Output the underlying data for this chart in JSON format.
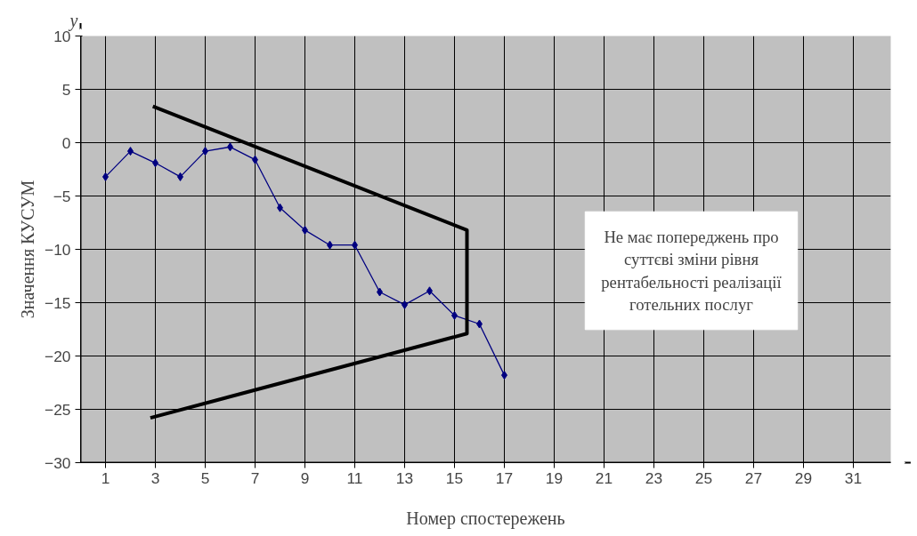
{
  "chart_data": {
    "type": "line",
    "xlabel": "Номер спостережень",
    "ylabel": "Значення КУСУМ",
    "annotations": [
      "y",
      "Не має попереджень про суттєві зміни рівня рентабельності реалізації готельних послуг"
    ],
    "x": [
      1,
      2,
      3,
      4,
      5,
      6,
      7,
      8,
      9,
      10,
      11,
      12,
      13,
      14,
      15,
      16,
      17
    ],
    "series": [
      {
        "color": "#000080",
        "marker": "diamond",
        "values": [
          -3.2,
          -0.8,
          -1.9,
          -3.2,
          -0.8,
          -0.4,
          -1.6,
          -6.1,
          -8.2,
          -9.6,
          -9.6,
          -14.0,
          -15.2,
          -13.9,
          -16.2,
          -17.0,
          -21.8
        ]
      },
      {
        "color": "#000000",
        "marker": "none",
        "x": [
          2.9,
          15.5,
          15.5,
          2.8
        ],
        "values": [
          3.4,
          -8.2,
          -17.9,
          -25.8
        ]
      }
    ],
    "xlim": [
      0,
      32.5
    ],
    "xticks": [
      1,
      3,
      5,
      7,
      9,
      11,
      13,
      15,
      17,
      19,
      21,
      23,
      25,
      27,
      29,
      31
    ],
    "ylim": [
      -30,
      10
    ],
    "yticks": [
      -30,
      -25,
      -20,
      -15,
      -10,
      -5,
      0,
      5,
      10
    ],
    "grid": true
  }
}
